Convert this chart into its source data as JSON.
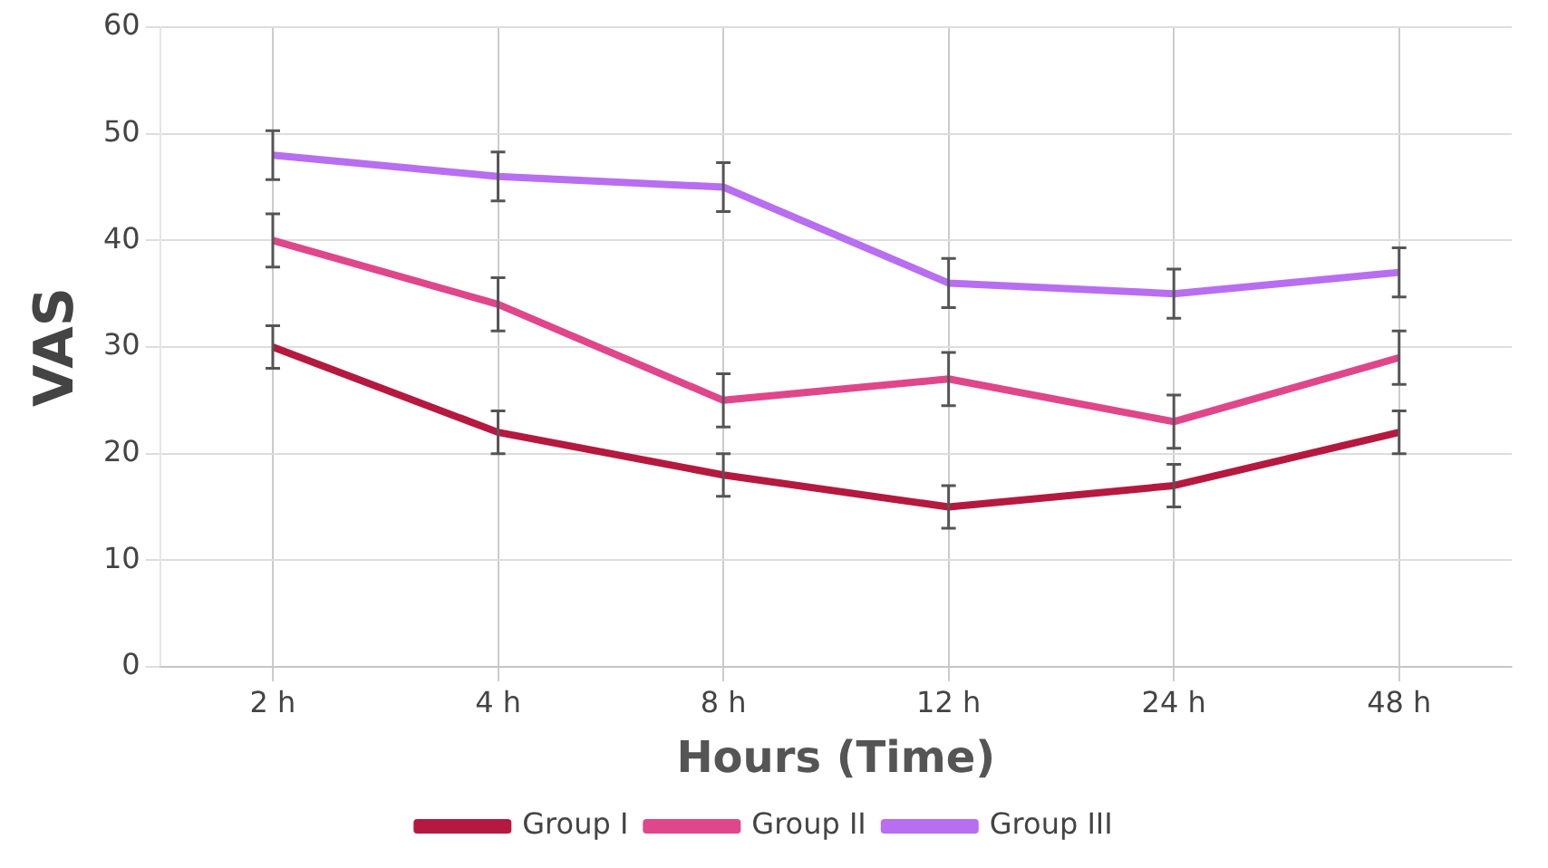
{
  "chart_data": {
    "type": "line",
    "xlabel": "Hours (Time)",
    "ylabel": "VAS",
    "categories": [
      "2 h",
      "4 h",
      "8 h",
      "12 h",
      "24 h",
      "48 h"
    ],
    "series": [
      {
        "name": "Group I",
        "color": "#b5193f",
        "values": [
          30,
          22,
          18,
          15,
          17,
          22
        ],
        "errors": [
          2,
          2,
          2,
          2,
          2,
          2
        ]
      },
      {
        "name": "Group II",
        "color": "#e0468a",
        "values": [
          40,
          34,
          25,
          27,
          23,
          29
        ],
        "errors": [
          2.5,
          2.5,
          2.5,
          2.5,
          2.5,
          2.5
        ]
      },
      {
        "name": "Group III",
        "color": "#b86ef0",
        "values": [
          48,
          46,
          45,
          36,
          35,
          37
        ],
        "errors": [
          2.3,
          2.3,
          2.3,
          2.3,
          2.3,
          2.3
        ]
      }
    ],
    "ylim": [
      0,
      60
    ],
    "yticks": [
      0,
      10,
      20,
      30,
      40,
      50,
      60
    ],
    "grid": true,
    "legend": "bottom",
    "marker": "none",
    "line_style": "solid"
  }
}
